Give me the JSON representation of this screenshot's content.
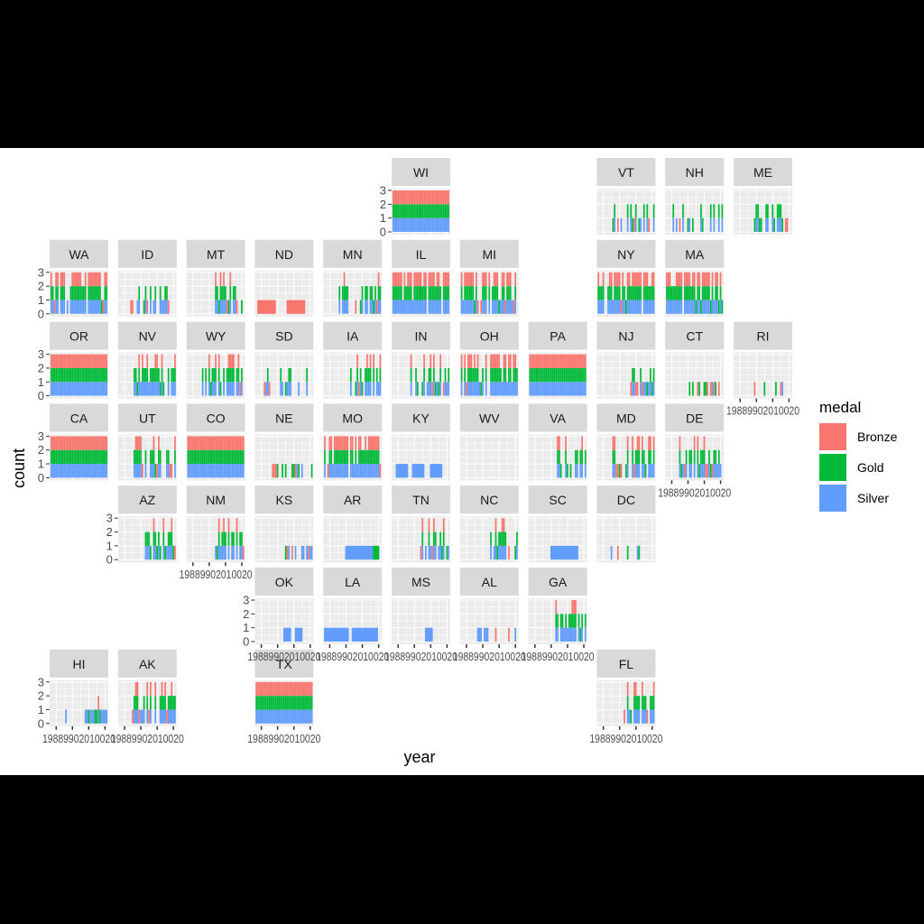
{
  "chart_data": {
    "type": "bar",
    "layout": "geofacet US state grid",
    "xlabel": "year",
    "ylabel": "count",
    "xlim": [
      1986,
      2022
    ],
    "ylim": [
      0,
      3
    ],
    "y_ticks": [
      "0",
      "1",
      "2",
      "3"
    ],
    "x_ticks": [
      "1990",
      "2000",
      "2010",
      "2020"
    ],
    "x_tick_text": "19889902010020",
    "legend": {
      "title": "medal",
      "position": "right",
      "entries": [
        {
          "name": "Bronze",
          "color": "#F8766D"
        },
        {
          "name": "Gold",
          "color": "#00BA38"
        },
        {
          "name": "Silver",
          "color": "#619CFF"
        }
      ]
    },
    "panel_background": "#EBEBEB",
    "strip_background": "#D9D9D9",
    "states": [
      {
        "code": "WI",
        "row": 0,
        "col": 5,
        "pattern": "full3"
      },
      {
        "code": "VT",
        "row": 0,
        "col": 8,
        "pattern": "sparse"
      },
      {
        "code": "NH",
        "row": 0,
        "col": 9,
        "pattern": "sparse"
      },
      {
        "code": "ME",
        "row": 0,
        "col": 10,
        "pattern": "sparse2"
      },
      {
        "code": "WA",
        "row": 1,
        "col": 0,
        "pattern": "dense"
      },
      {
        "code": "ID",
        "row": 1,
        "col": 1,
        "pattern": "sparse"
      },
      {
        "code": "MT",
        "row": 1,
        "col": 2,
        "pattern": "late"
      },
      {
        "code": "ND",
        "row": 1,
        "col": 3,
        "pattern": "ndbronze"
      },
      {
        "code": "MN",
        "row": 1,
        "col": 4,
        "pattern": "mid"
      },
      {
        "code": "IL",
        "row": 1,
        "col": 5,
        "pattern": "dense"
      },
      {
        "code": "MI",
        "row": 1,
        "col": 6,
        "pattern": "dense"
      },
      {
        "code": "NY",
        "row": 1,
        "col": 8,
        "pattern": "dense"
      },
      {
        "code": "MA",
        "row": 1,
        "col": 9,
        "pattern": "dense"
      },
      {
        "code": "OR",
        "row": 2,
        "col": 0,
        "pattern": "full3"
      },
      {
        "code": "NV",
        "row": 2,
        "col": 1,
        "pattern": "mid"
      },
      {
        "code": "WY",
        "row": 2,
        "col": 2,
        "pattern": "mid"
      },
      {
        "code": "SD",
        "row": 2,
        "col": 3,
        "pattern": "sparse"
      },
      {
        "code": "IA",
        "row": 2,
        "col": 4,
        "pattern": "late"
      },
      {
        "code": "IN",
        "row": 2,
        "col": 5,
        "pattern": "mid"
      },
      {
        "code": "OH",
        "row": 2,
        "col": 6,
        "pattern": "dense"
      },
      {
        "code": "PA",
        "row": 2,
        "col": 7,
        "pattern": "full3"
      },
      {
        "code": "NJ",
        "row": 2,
        "col": 8,
        "pattern": "late1"
      },
      {
        "code": "CT",
        "row": 2,
        "col": 9,
        "pattern": "low1"
      },
      {
        "code": "RI",
        "row": 2,
        "col": 10,
        "pattern": "tiny"
      },
      {
        "code": "CA",
        "row": 3,
        "col": 0,
        "pattern": "full3"
      },
      {
        "code": "UT",
        "row": 3,
        "col": 1,
        "pattern": "mid"
      },
      {
        "code": "CO",
        "row": 3,
        "col": 2,
        "pattern": "full3"
      },
      {
        "code": "NE",
        "row": 3,
        "col": 3,
        "pattern": "low1"
      },
      {
        "code": "MO",
        "row": 3,
        "col": 4,
        "pattern": "dense"
      },
      {
        "code": "KY",
        "row": 3,
        "col": 5,
        "pattern": "kysilver"
      },
      {
        "code": "WV",
        "row": 3,
        "col": 6,
        "pattern": "none"
      },
      {
        "code": "VA",
        "row": 3,
        "col": 7,
        "pattern": "late"
      },
      {
        "code": "MD",
        "row": 3,
        "col": 8,
        "pattern": "mid"
      },
      {
        "code": "DE",
        "row": 3,
        "col": 9,
        "pattern": "mid"
      },
      {
        "code": "AZ",
        "row": 4,
        "col": 1,
        "pattern": "late"
      },
      {
        "code": "NM",
        "row": 4,
        "col": 2,
        "pattern": "late"
      },
      {
        "code": "KS",
        "row": 4,
        "col": 3,
        "pattern": "low1"
      },
      {
        "code": "AR",
        "row": 4,
        "col": 4,
        "pattern": "arsilver"
      },
      {
        "code": "TN",
        "row": 4,
        "col": 5,
        "pattern": "late"
      },
      {
        "code": "NC",
        "row": 4,
        "col": 6,
        "pattern": "late"
      },
      {
        "code": "SC",
        "row": 4,
        "col": 7,
        "pattern": "scsilver"
      },
      {
        "code": "DC",
        "row": 4,
        "col": 8,
        "pattern": "tiny"
      },
      {
        "code": "OK",
        "row": 5,
        "col": 3,
        "pattern": "oksilver"
      },
      {
        "code": "LA",
        "row": 5,
        "col": 4,
        "pattern": "lasilver"
      },
      {
        "code": "MS",
        "row": 5,
        "col": 5,
        "pattern": "mssilver"
      },
      {
        "code": "AL",
        "row": 5,
        "col": 6,
        "pattern": "low1"
      },
      {
        "code": "GA",
        "row": 5,
        "col": 7,
        "pattern": "late"
      },
      {
        "code": "HI",
        "row": 6,
        "col": 0,
        "pattern": "hi"
      },
      {
        "code": "AK",
        "row": 6,
        "col": 1,
        "pattern": "mid"
      },
      {
        "code": "TX",
        "row": 6,
        "col": 3,
        "pattern": "full3"
      },
      {
        "code": "FL",
        "row": 6,
        "col": 8,
        "pattern": "late"
      }
    ],
    "y_axis_rows": [
      0,
      1,
      2,
      3,
      4,
      5,
      6
    ],
    "x_axis_panels": [
      "RI",
      "DE",
      "NM",
      "OK",
      "LA",
      "MS",
      "AL",
      "GA",
      "HI",
      "AK",
      "TX",
      "FL"
    ]
  }
}
